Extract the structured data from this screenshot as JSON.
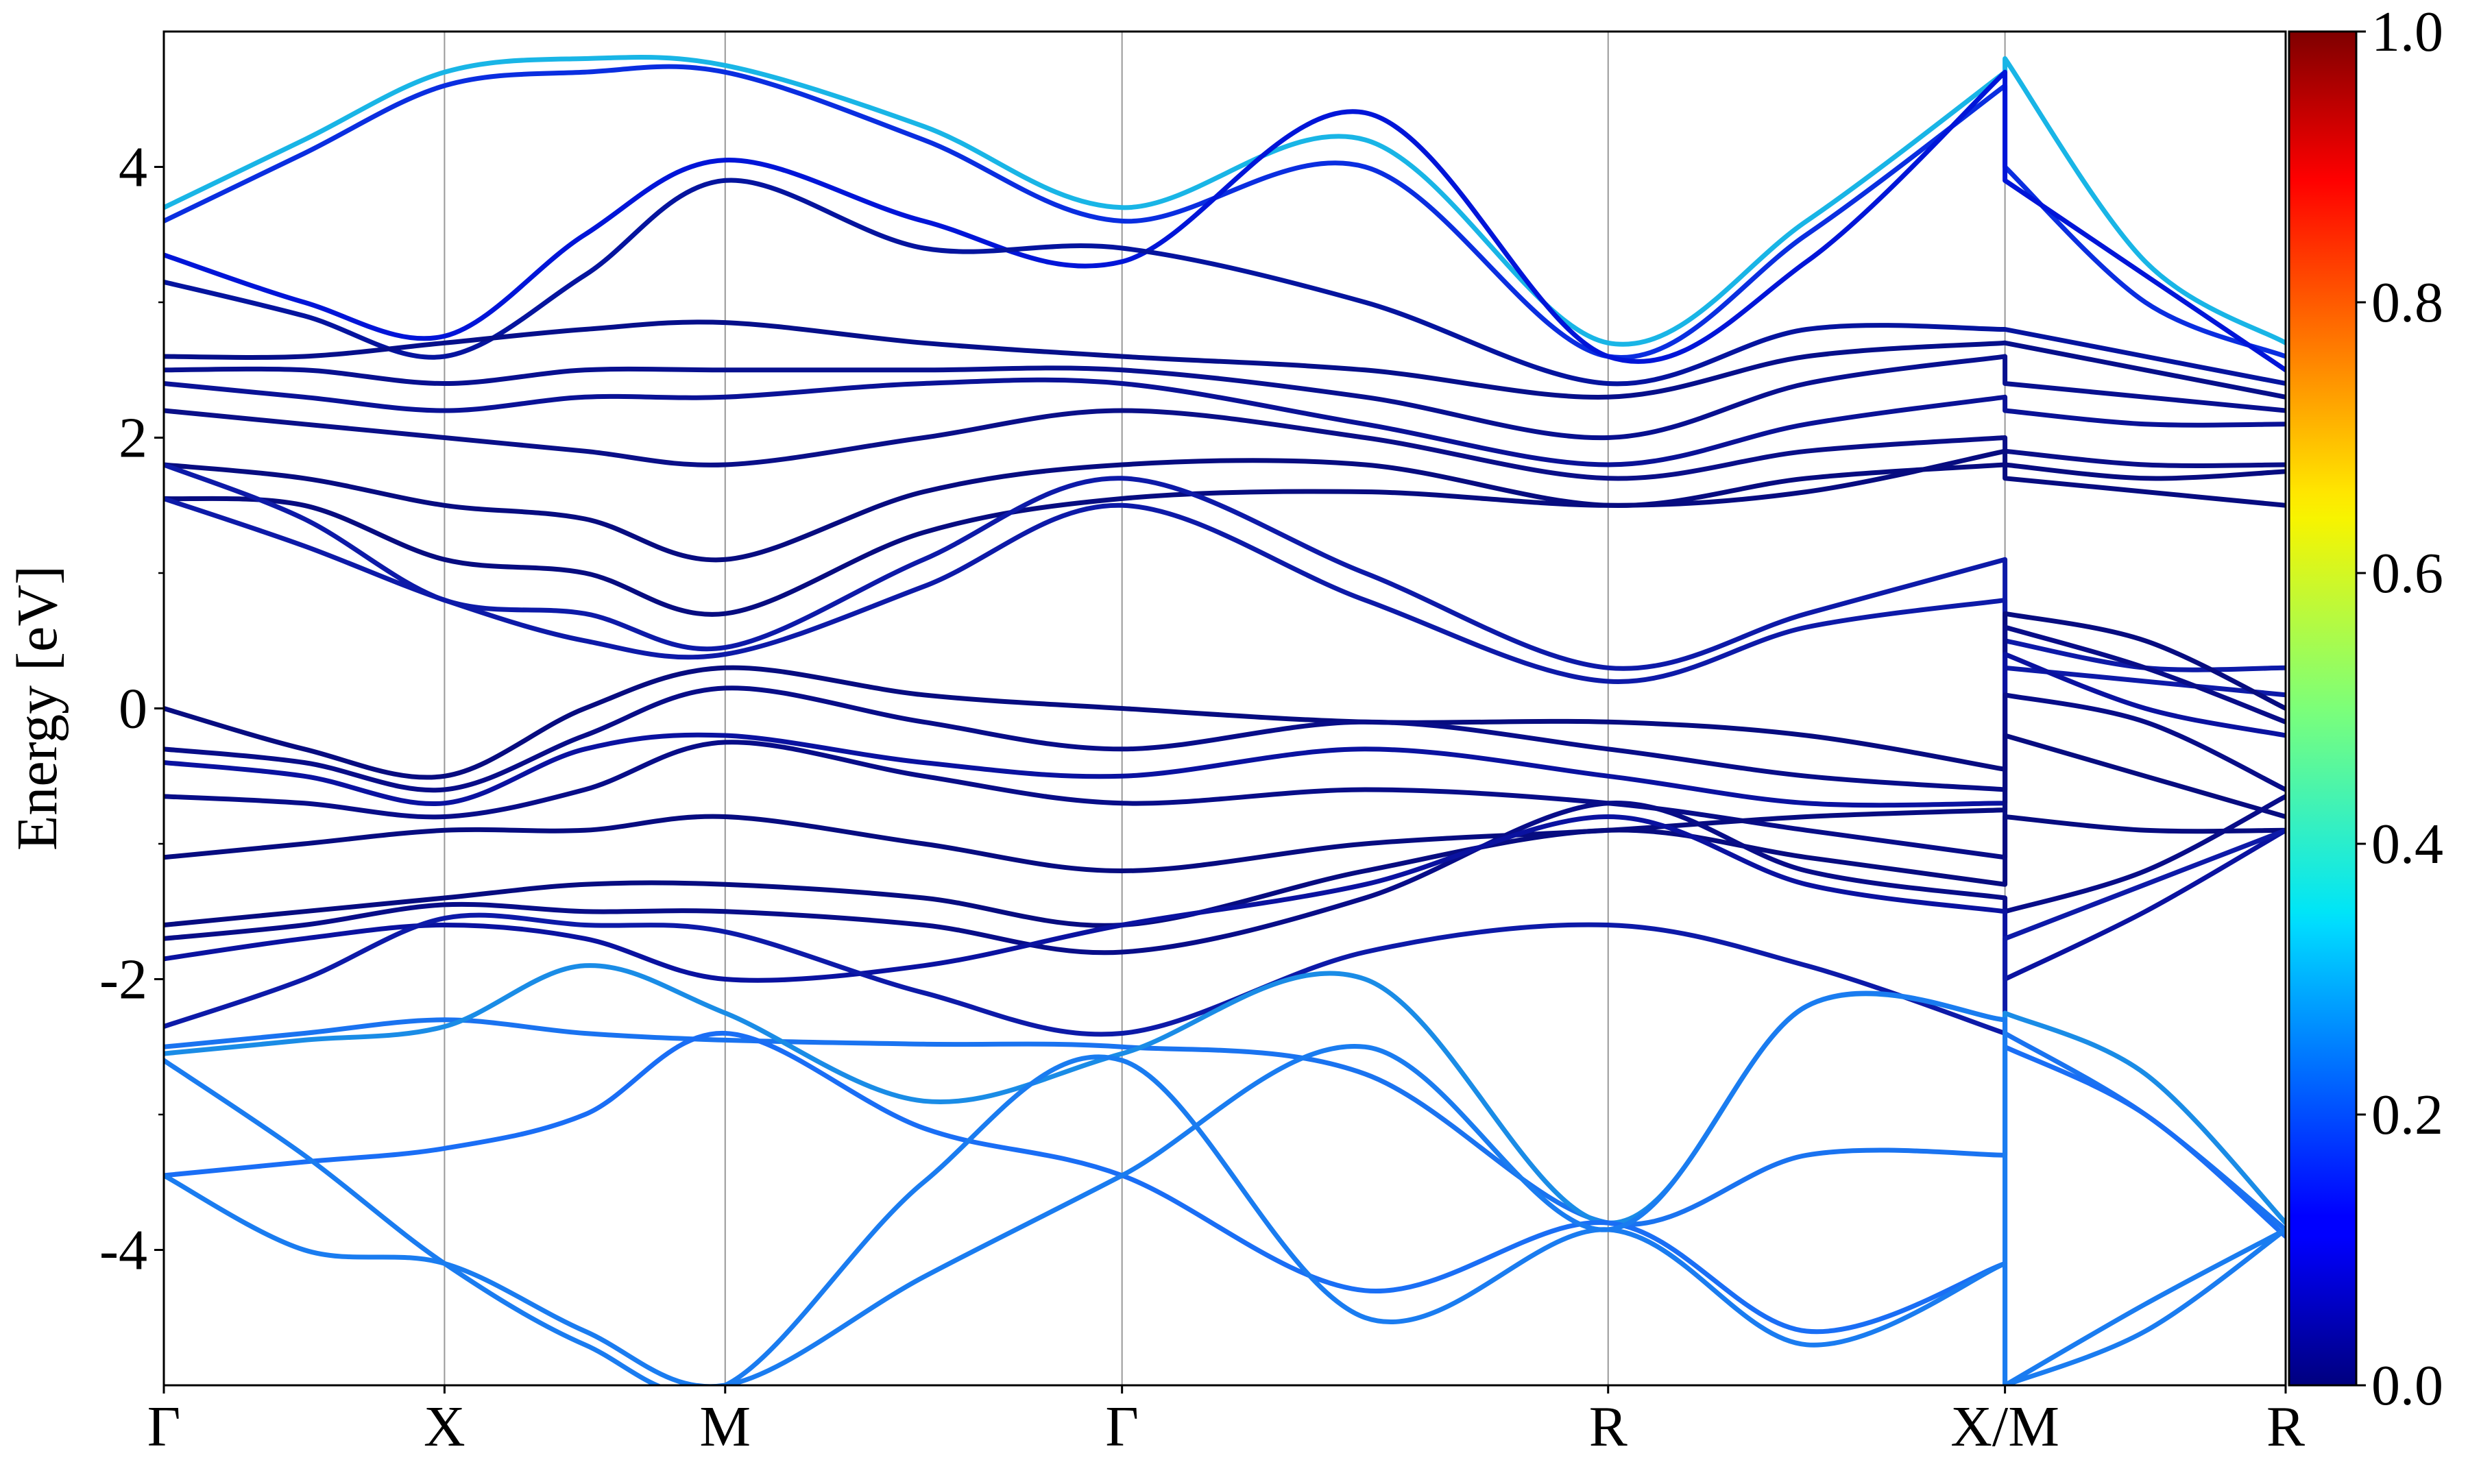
{
  "chart_data": {
    "type": "line",
    "y_label": "Energy [eV]",
    "ylim": [
      -5,
      5
    ],
    "yticks": [
      -4,
      -2,
      0,
      2,
      4
    ],
    "yminorticks": [
      -3,
      -1,
      1,
      3
    ],
    "xlim": [
      0,
      7.56
    ],
    "xticks": [
      {
        "value": 0,
        "label": "Γ"
      },
      {
        "value": 1,
        "label": "X"
      },
      {
        "value": 2,
        "label": "M"
      },
      {
        "value": 3.414,
        "label": "Γ"
      },
      {
        "value": 5.146,
        "label": "R"
      },
      {
        "value": 6.56,
        "label": "X/M"
      },
      {
        "value": 7.56,
        "label": "R"
      }
    ],
    "grid": true,
    "x": [
      0,
      0.5,
      1,
      1.5,
      2,
      2.707,
      3.414,
      4.28,
      5.146,
      5.853,
      6.56,
      6.56,
      7.06,
      7.56
    ],
    "series": [
      {
        "color": "#19b5e6",
        "values": [
          3.7,
          4.2,
          4.7,
          4.8,
          4.75,
          4.3,
          3.7,
          4.2,
          2.7,
          3.6,
          4.7,
          4.8,
          3.3,
          2.7
        ]
      },
      {
        "color": "#0a2ee0",
        "values": [
          3.6,
          4.1,
          4.6,
          4.7,
          4.7,
          4.2,
          3.6,
          4.0,
          2.6,
          3.5,
          4.6,
          4.0,
          3.0,
          2.6
        ]
      },
      {
        "color": "#0015d8",
        "values": [
          3.35,
          3.0,
          2.75,
          3.5,
          4.05,
          3.6,
          3.3,
          4.4,
          2.6,
          3.3,
          4.7,
          3.9,
          3.2,
          2.5
        ]
      },
      {
        "color": "#05149e",
        "values": [
          3.15,
          2.9,
          2.6,
          3.2,
          3.9,
          3.4,
          3.4,
          3.0,
          2.4,
          2.8,
          2.8,
          2.8,
          2.6,
          2.4
        ]
      },
      {
        "color": "#060f8a",
        "values": [
          2.6,
          2.6,
          2.7,
          2.8,
          2.85,
          2.7,
          2.6,
          2.5,
          2.3,
          2.6,
          2.7,
          2.7,
          2.5,
          2.3
        ]
      },
      {
        "color": "#08108f",
        "values": [
          2.5,
          2.5,
          2.4,
          2.5,
          2.5,
          2.5,
          2.5,
          2.3,
          2.0,
          2.4,
          2.6,
          2.4,
          2.3,
          2.2
        ]
      },
      {
        "color": "#0a1296",
        "values": [
          2.4,
          2.3,
          2.2,
          2.3,
          2.3,
          2.4,
          2.4,
          2.1,
          1.8,
          2.1,
          2.3,
          2.2,
          2.1,
          2.1
        ]
      },
      {
        "color": "#0a0f88",
        "values": [
          2.2,
          2.1,
          2.0,
          1.9,
          1.8,
          2.0,
          2.2,
          2.0,
          1.7,
          1.9,
          2.0,
          1.9,
          1.8,
          1.8
        ]
      },
      {
        "color": "#070c80",
        "values": [
          1.8,
          1.7,
          1.5,
          1.4,
          1.1,
          1.6,
          1.8,
          1.8,
          1.5,
          1.7,
          1.8,
          1.7,
          1.6,
          1.5
        ]
      },
      {
        "color": "#070c80",
        "values": [
          1.55,
          1.5,
          1.1,
          1.0,
          0.7,
          1.3,
          1.55,
          1.6,
          1.5,
          1.6,
          1.9,
          1.8,
          1.7,
          1.75
        ]
      },
      {
        "color": "#0d1aa8",
        "values": [
          1.8,
          1.4,
          0.8,
          0.7,
          0.45,
          1.1,
          1.7,
          1.0,
          0.3,
          0.7,
          1.1,
          0.5,
          0.3,
          0.3
        ]
      },
      {
        "color": "#0d1aa8",
        "values": [
          1.55,
          1.2,
          0.8,
          0.5,
          0.4,
          0.9,
          1.5,
          0.8,
          0.2,
          0.6,
          0.8,
          0.3,
          0.2,
          0.1
        ]
      },
      {
        "color": "#070c80",
        "values": [
          0.0,
          -0.3,
          -0.5,
          0.0,
          0.3,
          0.1,
          0.0,
          -0.1,
          -0.1,
          -0.2,
          -0.45,
          0.7,
          0.5,
          0.0
        ]
      },
      {
        "color": "#080d88",
        "values": [
          -0.3,
          -0.4,
          -0.6,
          -0.2,
          0.15,
          -0.1,
          -0.3,
          -0.1,
          -0.3,
          -0.5,
          -0.6,
          0.6,
          0.3,
          -0.1
        ]
      },
      {
        "color": "#0a12a0",
        "values": [
          -0.4,
          -0.5,
          -0.7,
          -0.3,
          -0.2,
          -0.4,
          -0.5,
          -0.3,
          -0.5,
          -0.7,
          -0.7,
          0.4,
          0.0,
          -0.2
        ]
      },
      {
        "color": "#080d88",
        "values": [
          -0.65,
          -0.7,
          -0.8,
          -0.6,
          -0.25,
          -0.5,
          -0.7,
          -0.6,
          -0.7,
          -0.9,
          -1.1,
          0.1,
          -0.1,
          -0.6
        ]
      },
      {
        "color": "#070c80",
        "values": [
          -1.1,
          -1.0,
          -0.9,
          -0.9,
          -0.8,
          -1.0,
          -1.2,
          -1.0,
          -0.9,
          -0.8,
          -0.75,
          -0.2,
          -0.5,
          -0.8
        ]
      },
      {
        "color": "#070c80",
        "values": [
          -1.6,
          -1.5,
          -1.4,
          -1.3,
          -1.3,
          -1.4,
          -1.6,
          -1.2,
          -0.9,
          -1.1,
          -1.3,
          -0.8,
          -0.9,
          -0.9
        ]
      },
      {
        "color": "#080d88",
        "values": [
          -1.7,
          -1.6,
          -1.45,
          -1.5,
          -1.5,
          -1.6,
          -1.8,
          -1.4,
          -0.7,
          -1.2,
          -1.4,
          -1.5,
          -1.2,
          -0.65
        ]
      },
      {
        "color": "#0a12a0",
        "values": [
          -1.85,
          -1.7,
          -1.6,
          -1.7,
          -2.0,
          -1.9,
          -1.6,
          -1.3,
          -0.8,
          -1.3,
          -1.5,
          -2.0,
          -1.5,
          -0.9
        ]
      },
      {
        "color": "#0d1aa8",
        "values": [
          -2.35,
          -2.0,
          -1.55,
          -1.6,
          -1.65,
          -2.1,
          -2.4,
          -1.8,
          -1.6,
          -1.9,
          -2.4,
          -1.7,
          -1.3,
          -0.9
        ]
      },
      {
        "color": "#1a73f0",
        "values": [
          -2.5,
          -2.4,
          -2.3,
          -2.4,
          -2.45,
          -2.48,
          -2.5,
          -2.7,
          -3.8,
          -3.3,
          -3.3,
          -2.4,
          -3.0,
          -3.85
        ]
      },
      {
        "color": "#1a8ce6",
        "values": [
          -2.55,
          -2.45,
          -2.35,
          -1.9,
          -2.25,
          -2.9,
          -2.55,
          -2.0,
          -3.8,
          -2.2,
          -2.3,
          -2.25,
          -2.7,
          -3.8
        ]
      },
      {
        "color": "#1a6ef5",
        "values": [
          -3.45,
          -3.35,
          -3.25,
          -3.0,
          -2.4,
          -3.1,
          -3.45,
          -4.3,
          -3.8,
          -4.6,
          -4.1,
          -2.5,
          -3.0,
          -3.9
        ]
      },
      {
        "color": "#1a7cf0",
        "values": [
          -3.45,
          -4.0,
          -4.1,
          -4.6,
          -5.0,
          -4.2,
          -3.45,
          -2.5,
          -3.85,
          -2.2,
          -2.3,
          -5.0,
          -4.4,
          -3.85
        ]
      },
      {
        "color": "#1a7cf0",
        "values": [
          -2.6,
          -3.3,
          -4.1,
          -4.7,
          -5.0,
          -3.5,
          -2.6,
          -4.5,
          -3.85,
          -4.7,
          -4.1,
          -5.0,
          -4.6,
          -3.85
        ]
      }
    ],
    "colorbar": {
      "colormap": "jet",
      "lim": [
        0,
        1
      ],
      "ticks": [
        {
          "value": 0,
          "label": "0.0"
        },
        {
          "value": 0.2,
          "label": "0.2"
        },
        {
          "value": 0.4,
          "label": "0.4"
        },
        {
          "value": 0.6,
          "label": "0.6"
        },
        {
          "value": 0.8,
          "label": "0.8"
        },
        {
          "value": 1,
          "label": "1.0"
        }
      ]
    }
  }
}
